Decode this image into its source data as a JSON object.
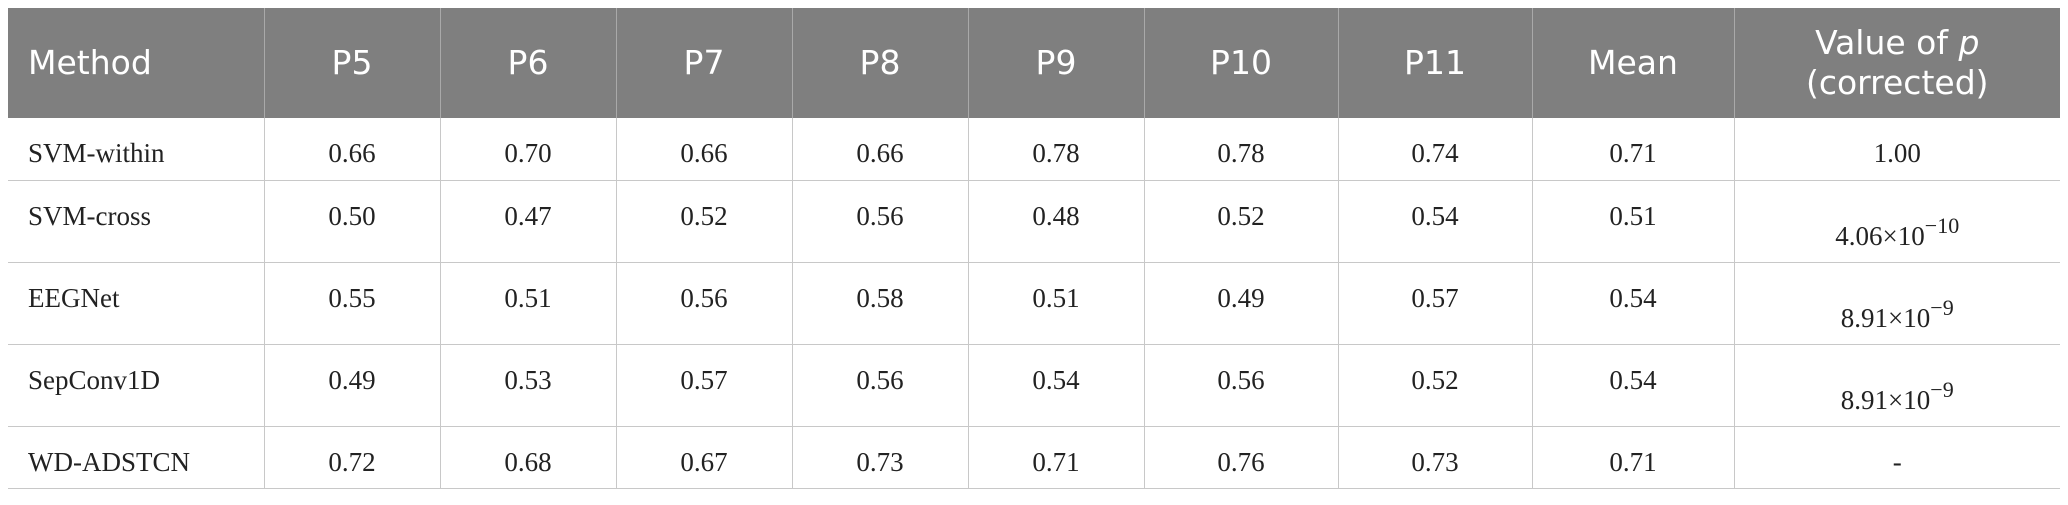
{
  "table": {
    "headers": [
      "Method",
      "P5",
      "P6",
      "P7",
      "P8",
      "P9",
      "P10",
      "P11",
      "Mean"
    ],
    "p_header": {
      "line1_text": "Value of ",
      "line1_var": "p",
      "line2": "(corrected)"
    },
    "rows": [
      {
        "method": "SVM-within",
        "values": [
          "0.66",
          "0.70",
          "0.66",
          "0.66",
          "0.78",
          "0.78",
          "0.74",
          "0.71"
        ],
        "p_mantissa": "1.00",
        "p_exp": ""
      },
      {
        "method": "SVM-cross",
        "values": [
          "0.50",
          "0.47",
          "0.52",
          "0.56",
          "0.48",
          "0.52",
          "0.54",
          "0.51"
        ],
        "p_mantissa": "4.06×10",
        "p_exp": "−10"
      },
      {
        "method": "EEGNet",
        "values": [
          "0.55",
          "0.51",
          "0.56",
          "0.58",
          "0.51",
          "0.49",
          "0.57",
          "0.54"
        ],
        "p_mantissa": "8.91×10",
        "p_exp": "−9"
      },
      {
        "method": "SepConv1D",
        "values": [
          "0.49",
          "0.53",
          "0.57",
          "0.56",
          "0.54",
          "0.56",
          "0.52",
          "0.54"
        ],
        "p_mantissa": "8.91×10",
        "p_exp": "−9"
      },
      {
        "method": "WD-ADSTCN",
        "values": [
          "0.72",
          "0.68",
          "0.67",
          "0.73",
          "0.71",
          "0.76",
          "0.73",
          "0.71"
        ],
        "p_mantissa": "-",
        "p_exp": ""
      }
    ],
    "colors": {
      "header_bg": "#7f7f7f",
      "header_text": "#ffffff",
      "grid": "#c8c8c8"
    }
  }
}
